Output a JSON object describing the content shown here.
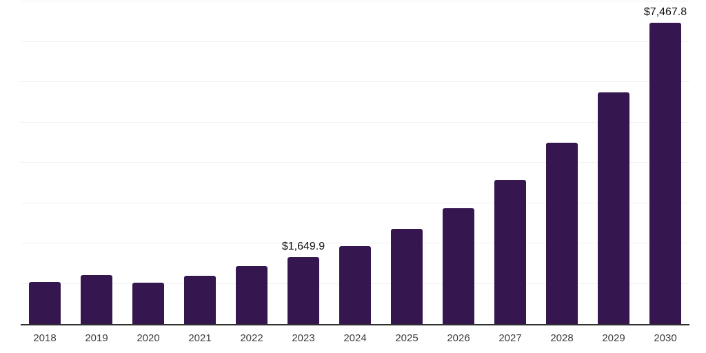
{
  "chart_data": {
    "type": "bar",
    "title": "",
    "xlabel": "",
    "ylabel": "",
    "ylim": [
      0,
      8000
    ],
    "y_tick_interval": 1000,
    "grid": true,
    "legend": false,
    "bar_color": "#36164f",
    "gridline_color": "#f0f0f0",
    "axis_line_color": "#2d2d2d",
    "categories": [
      "2018",
      "2019",
      "2020",
      "2021",
      "2022",
      "2023",
      "2024",
      "2025",
      "2026",
      "2027",
      "2028",
      "2029",
      "2030"
    ],
    "values": [
      1040,
      1210,
      1025,
      1195,
      1430,
      1649.9,
      1930,
      2355,
      2865,
      3580,
      4500,
      5745,
      7467.8
    ],
    "points": [
      {
        "year": "2018",
        "value": 1040,
        "label": ""
      },
      {
        "year": "2019",
        "value": 1210,
        "label": ""
      },
      {
        "year": "2020",
        "value": 1025,
        "label": ""
      },
      {
        "year": "2021",
        "value": 1195,
        "label": ""
      },
      {
        "year": "2022",
        "value": 1430,
        "label": ""
      },
      {
        "year": "2023",
        "value": 1649.9,
        "label": "$1,649.9"
      },
      {
        "year": "2024",
        "value": 1930,
        "label": ""
      },
      {
        "year": "2025",
        "value": 2355,
        "label": ""
      },
      {
        "year": "2026",
        "value": 2865,
        "label": ""
      },
      {
        "year": "2027",
        "value": 3580,
        "label": ""
      },
      {
        "year": "2028",
        "value": 4500,
        "label": ""
      },
      {
        "year": "2029",
        "value": 5745,
        "label": ""
      },
      {
        "year": "2030",
        "value": 7467.8,
        "label": "$7,467.8"
      }
    ]
  }
}
